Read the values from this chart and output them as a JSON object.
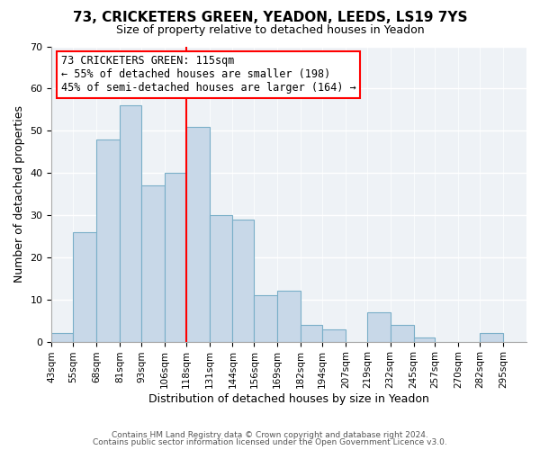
{
  "title1": "73, CRICKETERS GREEN, YEADON, LEEDS, LS19 7YS",
  "title2": "Size of property relative to detached houses in Yeadon",
  "xlabel": "Distribution of detached houses by size in Yeadon",
  "ylabel": "Number of detached properties",
  "bar_labels": [
    "43sqm",
    "55sqm",
    "68sqm",
    "81sqm",
    "93sqm",
    "106sqm",
    "118sqm",
    "131sqm",
    "144sqm",
    "156sqm",
    "169sqm",
    "182sqm",
    "194sqm",
    "207sqm",
    "219sqm",
    "232sqm",
    "245sqm",
    "257sqm",
    "270sqm",
    "282sqm",
    "295sqm"
  ],
  "bar_values": [
    2,
    26,
    48,
    56,
    37,
    40,
    51,
    30,
    29,
    11,
    12,
    4,
    3,
    0,
    7,
    4,
    1,
    0,
    0,
    2,
    0
  ],
  "bar_color": "#c8d8e8",
  "bar_edgecolor": "#7aafc8",
  "bin_edges": [
    43,
    55,
    68,
    81,
    93,
    106,
    118,
    131,
    144,
    156,
    169,
    182,
    194,
    207,
    219,
    232,
    245,
    257,
    270,
    282,
    295,
    308
  ],
  "reference_line_x": 118,
  "ylim": [
    0,
    70
  ],
  "yticks": [
    0,
    10,
    20,
    30,
    40,
    50,
    60,
    70
  ],
  "annotation_text1": "73 CRICKETERS GREEN: 115sqm",
  "annotation_text2": "← 55% of detached houses are smaller (198)",
  "annotation_text3": "45% of semi-detached houses are larger (164) →",
  "footer1": "Contains HM Land Registry data © Crown copyright and database right 2024.",
  "footer2": "Contains public sector information licensed under the Open Government Licence v3.0.",
  "bg_color": "#eef2f6"
}
